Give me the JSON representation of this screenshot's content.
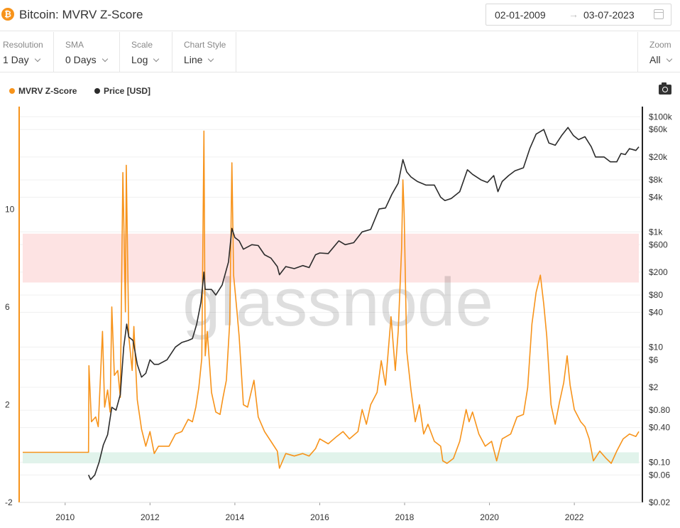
{
  "header": {
    "title": "Bitcoin: MVRV Z-Score",
    "coin_symbol": "₿",
    "date_start": "02-01-2009",
    "date_arrow": "→",
    "date_end": "03-07-2023"
  },
  "controls": {
    "resolution": {
      "label": "Resolution",
      "value": "1 Day"
    },
    "sma": {
      "label": "SMA",
      "value": "0 Days"
    },
    "scale": {
      "label": "Scale",
      "value": "Log"
    },
    "chart_style": {
      "label": "Chart Style",
      "value": "Line"
    },
    "zoom": {
      "label": "Zoom",
      "value": "All"
    }
  },
  "colors": {
    "zscore": "#f7931a",
    "price": "#2b2b2b",
    "red_band": "#fde3e3",
    "green_band": "#e1f3eb"
  },
  "chart_data": {
    "type": "line",
    "watermark": "glassnode",
    "legend": [
      "MVRV Z-Score",
      "Price [USD]"
    ],
    "x_ticks": [
      "2010",
      "2012",
      "2014",
      "2016",
      "2018",
      "2020",
      "2022"
    ],
    "x_range": [
      2009.0,
      2023.52
    ],
    "left_axis": {
      "ticks": [
        -2,
        2,
        6,
        10
      ],
      "labels": [
        "-2",
        "2",
        "6",
        "10"
      ],
      "range": [
        -2,
        14.2
      ]
    },
    "right_axis": {
      "scale": "log",
      "range": [
        0.02,
        150000
      ],
      "ticks": [
        0.02,
        0.06,
        0.1,
        0.4,
        0.8,
        2,
        6,
        10,
        40,
        80,
        200,
        600,
        1000,
        4000,
        8000,
        20000,
        60000,
        100000
      ],
      "labels": [
        "$0.02",
        "$0.06",
        "$0.10",
        "$0.40",
        "$0.80",
        "$2",
        "$6",
        "$10",
        "$40",
        "$80",
        "$200",
        "$600",
        "$1k",
        "$4k",
        "$8k",
        "$20k",
        "$60k",
        "$100k"
      ]
    },
    "bands": [
      {
        "name": "overvalued",
        "from": 7,
        "to": 9
      },
      {
        "name": "undervalued",
        "from": -0.4,
        "to": 0.05
      }
    ],
    "series": [
      {
        "name": "MVRV Z-Score",
        "axis": "left",
        "points": [
          [
            2009.0,
            0.05
          ],
          [
            2010.55,
            0.05
          ],
          [
            2010.56,
            3.6
          ],
          [
            2010.62,
            1.3
          ],
          [
            2010.72,
            1.5
          ],
          [
            2010.78,
            1.1
          ],
          [
            2010.88,
            5.0
          ],
          [
            2010.93,
            1.9
          ],
          [
            2011.0,
            2.6
          ],
          [
            2011.06,
            1.7
          ],
          [
            2011.1,
            6.0
          ],
          [
            2011.16,
            3.2
          ],
          [
            2011.24,
            3.4
          ],
          [
            2011.3,
            2.3
          ],
          [
            2011.36,
            11.5
          ],
          [
            2011.42,
            5.8
          ],
          [
            2011.44,
            11.8
          ],
          [
            2011.5,
            4.8
          ],
          [
            2011.58,
            3.4
          ],
          [
            2011.62,
            5.2
          ],
          [
            2011.7,
            2.2
          ],
          [
            2011.8,
            1.0
          ],
          [
            2011.9,
            0.3
          ],
          [
            2012.0,
            0.9
          ],
          [
            2012.1,
            0.0
          ],
          [
            2012.2,
            0.3
          ],
          [
            2012.3,
            0.3
          ],
          [
            2012.45,
            0.3
          ],
          [
            2012.6,
            0.8
          ],
          [
            2012.75,
            0.9
          ],
          [
            2012.9,
            1.4
          ],
          [
            2013.0,
            1.3
          ],
          [
            2013.08,
            1.9
          ],
          [
            2013.15,
            2.7
          ],
          [
            2013.22,
            3.9
          ],
          [
            2013.27,
            13.2
          ],
          [
            2013.3,
            4.0
          ],
          [
            2013.35,
            5.0
          ],
          [
            2013.45,
            2.5
          ],
          [
            2013.55,
            1.7
          ],
          [
            2013.65,
            1.6
          ],
          [
            2013.72,
            2.3
          ],
          [
            2013.8,
            3.0
          ],
          [
            2013.88,
            5.4
          ],
          [
            2013.93,
            11.9
          ],
          [
            2013.97,
            7.3
          ],
          [
            2014.05,
            5.8
          ],
          [
            2014.1,
            4.8
          ],
          [
            2014.2,
            2.0
          ],
          [
            2014.3,
            1.9
          ],
          [
            2014.45,
            3.0
          ],
          [
            2014.55,
            1.5
          ],
          [
            2014.7,
            0.9
          ],
          [
            2014.85,
            0.5
          ],
          [
            2015.0,
            0.1
          ],
          [
            2015.05,
            -0.6
          ],
          [
            2015.2,
            0.0
          ],
          [
            2015.4,
            -0.1
          ],
          [
            2015.6,
            0.0
          ],
          [
            2015.75,
            -0.1
          ],
          [
            2015.9,
            0.2
          ],
          [
            2016.0,
            0.6
          ],
          [
            2016.2,
            0.4
          ],
          [
            2016.4,
            0.7
          ],
          [
            2016.55,
            0.9
          ],
          [
            2016.7,
            0.6
          ],
          [
            2016.9,
            0.9
          ],
          [
            2017.0,
            1.8
          ],
          [
            2017.1,
            1.2
          ],
          [
            2017.2,
            2.0
          ],
          [
            2017.35,
            2.5
          ],
          [
            2017.45,
            3.8
          ],
          [
            2017.55,
            2.8
          ],
          [
            2017.68,
            5.6
          ],
          [
            2017.78,
            3.4
          ],
          [
            2017.85,
            5.0
          ],
          [
            2017.93,
            8.4
          ],
          [
            2017.96,
            11.2
          ],
          [
            2017.99,
            9.8
          ],
          [
            2018.05,
            4.2
          ],
          [
            2018.15,
            2.6
          ],
          [
            2018.25,
            1.3
          ],
          [
            2018.35,
            2.0
          ],
          [
            2018.45,
            0.8
          ],
          [
            2018.55,
            1.2
          ],
          [
            2018.7,
            0.5
          ],
          [
            2018.85,
            0.3
          ],
          [
            2018.9,
            -0.3
          ],
          [
            2019.0,
            -0.4
          ],
          [
            2019.15,
            -0.2
          ],
          [
            2019.3,
            0.5
          ],
          [
            2019.45,
            1.8
          ],
          [
            2019.52,
            1.3
          ],
          [
            2019.6,
            1.7
          ],
          [
            2019.75,
            0.8
          ],
          [
            2019.9,
            0.3
          ],
          [
            2020.05,
            0.5
          ],
          [
            2020.17,
            -0.3
          ],
          [
            2020.3,
            0.6
          ],
          [
            2020.5,
            0.8
          ],
          [
            2020.65,
            1.5
          ],
          [
            2020.8,
            1.6
          ],
          [
            2020.9,
            2.7
          ],
          [
            2021.0,
            5.3
          ],
          [
            2021.1,
            6.6
          ],
          [
            2021.2,
            7.3
          ],
          [
            2021.28,
            6.1
          ],
          [
            2021.35,
            4.8
          ],
          [
            2021.45,
            2.0
          ],
          [
            2021.55,
            1.2
          ],
          [
            2021.65,
            2.1
          ],
          [
            2021.75,
            2.9
          ],
          [
            2021.83,
            4.0
          ],
          [
            2021.9,
            2.8
          ],
          [
            2022.0,
            1.8
          ],
          [
            2022.15,
            1.3
          ],
          [
            2022.25,
            1.1
          ],
          [
            2022.35,
            0.6
          ],
          [
            2022.45,
            -0.3
          ],
          [
            2022.6,
            0.1
          ],
          [
            2022.75,
            -0.2
          ],
          [
            2022.87,
            -0.4
          ],
          [
            2023.0,
            0.1
          ],
          [
            2023.15,
            0.6
          ],
          [
            2023.3,
            0.8
          ],
          [
            2023.45,
            0.7
          ],
          [
            2023.52,
            0.9
          ]
        ]
      },
      {
        "name": "Price [USD]",
        "axis": "right",
        "points": [
          [
            2010.55,
            0.06
          ],
          [
            2010.6,
            0.05
          ],
          [
            2010.7,
            0.06
          ],
          [
            2010.8,
            0.1
          ],
          [
            2010.9,
            0.2
          ],
          [
            2011.0,
            0.3
          ],
          [
            2011.1,
            0.9
          ],
          [
            2011.2,
            0.8
          ],
          [
            2011.3,
            1.5
          ],
          [
            2011.38,
            10
          ],
          [
            2011.45,
            25
          ],
          [
            2011.5,
            15
          ],
          [
            2011.6,
            13
          ],
          [
            2011.7,
            5
          ],
          [
            2011.8,
            3
          ],
          [
            2011.9,
            3.5
          ],
          [
            2012.0,
            6
          ],
          [
            2012.1,
            5
          ],
          [
            2012.2,
            5
          ],
          [
            2012.4,
            6
          ],
          [
            2012.6,
            10
          ],
          [
            2012.75,
            12
          ],
          [
            2012.9,
            13
          ],
          [
            2013.0,
            14
          ],
          [
            2013.1,
            25
          ],
          [
            2013.2,
            60
          ],
          [
            2013.27,
            200
          ],
          [
            2013.3,
            100
          ],
          [
            2013.45,
            100
          ],
          [
            2013.55,
            80
          ],
          [
            2013.7,
            120
          ],
          [
            2013.85,
            300
          ],
          [
            2013.93,
            1150
          ],
          [
            2014.0,
            800
          ],
          [
            2014.1,
            700
          ],
          [
            2014.2,
            500
          ],
          [
            2014.4,
            600
          ],
          [
            2014.55,
            580
          ],
          [
            2014.7,
            400
          ],
          [
            2014.85,
            350
          ],
          [
            2015.0,
            250
          ],
          [
            2015.05,
            180
          ],
          [
            2015.2,
            250
          ],
          [
            2015.4,
            230
          ],
          [
            2015.6,
            260
          ],
          [
            2015.75,
            240
          ],
          [
            2015.9,
            400
          ],
          [
            2016.0,
            430
          ],
          [
            2016.2,
            420
          ],
          [
            2016.45,
            700
          ],
          [
            2016.6,
            600
          ],
          [
            2016.8,
            650
          ],
          [
            2017.0,
            1000
          ],
          [
            2017.2,
            1100
          ],
          [
            2017.4,
            2500
          ],
          [
            2017.55,
            2600
          ],
          [
            2017.7,
            4500
          ],
          [
            2017.85,
            7000
          ],
          [
            2017.96,
            18000
          ],
          [
            2018.05,
            11000
          ],
          [
            2018.15,
            9000
          ],
          [
            2018.3,
            7500
          ],
          [
            2018.5,
            6500
          ],
          [
            2018.7,
            6500
          ],
          [
            2018.85,
            4000
          ],
          [
            2018.95,
            3500
          ],
          [
            2019.1,
            3800
          ],
          [
            2019.3,
            5000
          ],
          [
            2019.48,
            12000
          ],
          [
            2019.6,
            10000
          ],
          [
            2019.8,
            8000
          ],
          [
            2019.95,
            7200
          ],
          [
            2020.1,
            9500
          ],
          [
            2020.2,
            5000
          ],
          [
            2020.3,
            7500
          ],
          [
            2020.45,
            9500
          ],
          [
            2020.6,
            11500
          ],
          [
            2020.8,
            13000
          ],
          [
            2020.95,
            28000
          ],
          [
            2021.1,
            50000
          ],
          [
            2021.28,
            60000
          ],
          [
            2021.4,
            35000
          ],
          [
            2021.55,
            32000
          ],
          [
            2021.7,
            47000
          ],
          [
            2021.85,
            65000
          ],
          [
            2021.98,
            47000
          ],
          [
            2022.1,
            40000
          ],
          [
            2022.25,
            45000
          ],
          [
            2022.4,
            30000
          ],
          [
            2022.5,
            20000
          ],
          [
            2022.7,
            20000
          ],
          [
            2022.85,
            16500
          ],
          [
            2023.0,
            16500
          ],
          [
            2023.1,
            23000
          ],
          [
            2023.2,
            22000
          ],
          [
            2023.3,
            28000
          ],
          [
            2023.45,
            26000
          ],
          [
            2023.52,
            30000
          ]
        ]
      }
    ]
  }
}
